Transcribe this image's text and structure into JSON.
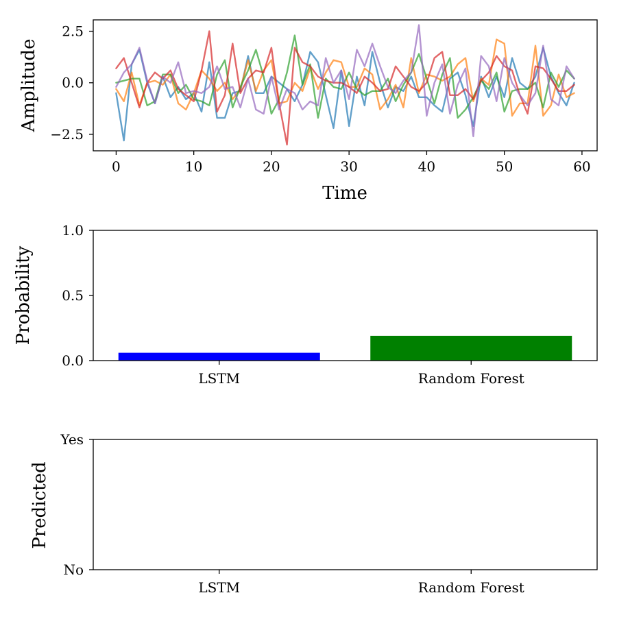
{
  "chart_data": [
    {
      "type": "line",
      "xlabel": "Time",
      "ylabel": "Amplitude",
      "xlim": [
        -2.95,
        61.95
      ],
      "ylim": [
        -3.3,
        3.05
      ],
      "xticks": [
        0,
        10,
        20,
        30,
        40,
        50,
        60
      ],
      "xtick_labels": [
        "0",
        "10",
        "20",
        "30",
        "40",
        "50",
        "60"
      ],
      "yticks": [
        2.5,
        0.0,
        -2.5
      ],
      "ytick_labels": [
        "2.5",
        "0.0",
        "−2.5"
      ],
      "grid": false,
      "series": [
        {
          "color": "#1f77b4",
          "x": [
            0,
            1,
            2,
            3,
            4,
            5,
            6,
            7,
            8,
            9,
            10,
            11,
            12,
            13,
            14,
            15,
            16,
            17,
            18,
            19,
            20,
            21,
            22,
            23,
            24,
            25,
            26,
            27,
            28,
            29,
            30,
            31,
            32,
            33,
            34,
            35,
            36,
            37,
            38,
            39,
            40,
            41,
            42,
            43,
            44,
            45,
            46,
            47,
            48,
            49,
            50,
            51,
            52,
            53,
            54,
            55,
            56,
            57,
            58,
            59
          ],
          "y": [
            -0.5,
            -2.8,
            0.9,
            1.6,
            0.0,
            -1.0,
            0.3,
            -0.7,
            -0.2,
            -0.8,
            -0.5,
            -1.4,
            1.0,
            -1.7,
            -1.7,
            -0.5,
            -0.4,
            1.3,
            -0.5,
            -0.5,
            0.3,
            0.0,
            -0.3,
            -0.9,
            -0.1,
            1.5,
            1.0,
            -0.6,
            -2.2,
            0.6,
            -2.1,
            0.3,
            -1.1,
            1.5,
            0.0,
            -1.2,
            -0.2,
            -0.4,
            0.3,
            -0.7,
            -0.7,
            -1.1,
            -1.4,
            0.2,
            0.5,
            -0.6,
            -2.1,
            0.3,
            -0.7,
            0.3,
            -0.7,
            1.2,
            0.0,
            -0.3,
            0.3,
            1.7,
            0.3,
            -0.5,
            -1.1,
            0.0
          ]
        },
        {
          "color": "#ff7f0e",
          "x": [
            0,
            1,
            2,
            3,
            4,
            5,
            6,
            7,
            8,
            9,
            10,
            11,
            12,
            13,
            14,
            15,
            16,
            17,
            18,
            19,
            20,
            21,
            22,
            23,
            24,
            25,
            26,
            27,
            28,
            29,
            30,
            31,
            32,
            33,
            34,
            35,
            36,
            37,
            38,
            39,
            40,
            41,
            42,
            43,
            44,
            45,
            46,
            47,
            48,
            49,
            50,
            51,
            52,
            53,
            54,
            55,
            56,
            57,
            58,
            59
          ],
          "y": [
            -0.3,
            -0.9,
            0.5,
            -1.1,
            0.0,
            0.1,
            -0.1,
            0.4,
            -1.0,
            -1.3,
            -0.5,
            0.6,
            0.2,
            -0.4,
            0.0,
            -0.8,
            -0.3,
            1.1,
            -0.4,
            0.6,
            1.1,
            -1.0,
            -0.9,
            0.0,
            -0.4,
            0.7,
            -0.3,
            0.5,
            1.1,
            1.0,
            -0.2,
            -0.2,
            0.7,
            0.4,
            -1.3,
            -0.8,
            -0.1,
            -1.2,
            1.2,
            -0.5,
            0.4,
            0.3,
            0.1,
            0.3,
            0.9,
            1.2,
            -0.9,
            0.2,
            -0.1,
            2.1,
            1.9,
            -1.6,
            -1.0,
            -1.0,
            1.8,
            -1.6,
            -1.1,
            0.4,
            -0.7,
            -0.5
          ]
        },
        {
          "color": "#2ca02c",
          "x": [
            0,
            1,
            2,
            3,
            4,
            5,
            6,
            7,
            8,
            9,
            10,
            11,
            12,
            13,
            14,
            15,
            16,
            17,
            18,
            19,
            20,
            21,
            22,
            23,
            24,
            25,
            26,
            27,
            28,
            29,
            30,
            31,
            32,
            33,
            34,
            35,
            36,
            37,
            38,
            39,
            40,
            41,
            42,
            43,
            44,
            45,
            46,
            47,
            48,
            49,
            50,
            51,
            52,
            53,
            54,
            55,
            56,
            57,
            58,
            59
          ],
          "y": [
            0.0,
            0.1,
            0.2,
            0.2,
            -1.1,
            -0.9,
            0.4,
            0.4,
            -0.5,
            -0.1,
            -0.8,
            -0.9,
            -1.1,
            0.4,
            1.1,
            -1.2,
            -0.2,
            0.6,
            1.6,
            0.3,
            -1.5,
            -0.8,
            0.5,
            2.3,
            -0.1,
            0.9,
            -1.7,
            0.2,
            -0.2,
            -0.3,
            0.5,
            -0.3,
            -0.6,
            -0.4,
            -0.4,
            0.2,
            -0.9,
            -0.1,
            0.5,
            1.4,
            0.2,
            -1.0,
            0.4,
            1.2,
            -1.7,
            -1.3,
            -0.7,
            0.1,
            -0.3,
            0.5,
            -1.4,
            -0.4,
            -0.3,
            -0.3,
            0.0,
            -1.2,
            0.5,
            -0.2,
            0.6,
            0.2
          ]
        },
        {
          "color": "#d62728",
          "x": [
            0,
            1,
            2,
            3,
            4,
            5,
            6,
            7,
            8,
            9,
            10,
            11,
            12,
            13,
            14,
            15,
            16,
            17,
            18,
            19,
            20,
            21,
            22,
            23,
            24,
            25,
            26,
            27,
            28,
            29,
            30,
            31,
            32,
            33,
            34,
            35,
            36,
            37,
            38,
            39,
            40,
            41,
            42,
            43,
            44,
            45,
            46,
            47,
            48,
            49,
            50,
            51,
            52,
            53,
            54,
            55,
            56,
            57,
            58,
            59
          ],
          "y": [
            0.7,
            1.2,
            0.0,
            -1.2,
            0.0,
            0.5,
            0.2,
            0.6,
            -0.3,
            -0.6,
            -0.9,
            0.6,
            2.5,
            -1.4,
            -0.6,
            1.9,
            -0.5,
            0.2,
            0.6,
            0.5,
            1.7,
            -1.0,
            -3.0,
            1.7,
            1.0,
            0.8,
            0.3,
            0.1,
            0.0,
            0.0,
            -0.2,
            -0.5,
            0.3,
            0.0,
            -0.4,
            -0.3,
            0.8,
            0.3,
            -0.2,
            -0.4,
            0.0,
            1.2,
            1.5,
            -0.6,
            -0.6,
            -0.3,
            -0.8,
            0.1,
            0.5,
            1.3,
            0.8,
            0.6,
            -0.6,
            -1.5,
            0.8,
            0.7,
            0.2,
            -0.4,
            -0.4,
            -0.1
          ]
        },
        {
          "color": "#9467bd",
          "x": [
            0,
            1,
            2,
            3,
            4,
            5,
            6,
            7,
            8,
            9,
            10,
            11,
            12,
            13,
            14,
            15,
            16,
            17,
            18,
            19,
            20,
            21,
            22,
            23,
            24,
            25,
            26,
            27,
            28,
            29,
            30,
            31,
            32,
            33,
            34,
            35,
            36,
            37,
            38,
            39,
            40,
            41,
            42,
            43,
            44,
            45,
            46,
            47,
            48,
            49,
            50,
            51,
            52,
            53,
            54,
            55,
            56,
            57,
            58,
            59
          ],
          "y": [
            -0.2,
            0.5,
            0.9,
            1.7,
            0.1,
            -1.0,
            0.3,
            0.0,
            1.0,
            -0.5,
            -0.4,
            -0.5,
            -0.2,
            0.8,
            -0.3,
            -0.2,
            -1.2,
            0.2,
            -1.3,
            -1.5,
            0.3,
            -1.3,
            -0.3,
            -0.5,
            -1.3,
            -0.9,
            -1.1,
            1.2,
            0.0,
            0.6,
            -0.8,
            1.6,
            0.8,
            1.9,
            0.8,
            -0.2,
            -0.5,
            0.1,
            0.5,
            2.8,
            -1.6,
            0.0,
            0.9,
            -1.5,
            -0.1,
            0.7,
            -2.6,
            1.3,
            0.8,
            -0.9,
            1.2,
            0.0,
            -0.6,
            -1.1,
            -0.5,
            1.8,
            -0.8,
            -1.1,
            0.8,
            0.2
          ]
        }
      ]
    },
    {
      "type": "bar",
      "xlabel": "",
      "ylabel": "Probability",
      "ylim": [
        0.0,
        1.0
      ],
      "yticks": [
        0.0,
        0.5,
        1.0
      ],
      "ytick_labels": [
        "0.0",
        "0.5",
        "1.0"
      ],
      "categories": [
        "LSTM",
        "Random Forest"
      ],
      "values": [
        0.06,
        0.19
      ],
      "colors": [
        "#0000ff",
        "#008000"
      ],
      "grid": false
    },
    {
      "type": "bar",
      "xlabel": "",
      "ylabel": "Predicted",
      "ylim": [
        0,
        1
      ],
      "yticks": [
        0,
        1
      ],
      "ytick_labels": [
        "No",
        "Yes"
      ],
      "categories": [
        "LSTM",
        "Random Forest"
      ],
      "values": [
        0,
        0
      ],
      "grid": false
    }
  ]
}
